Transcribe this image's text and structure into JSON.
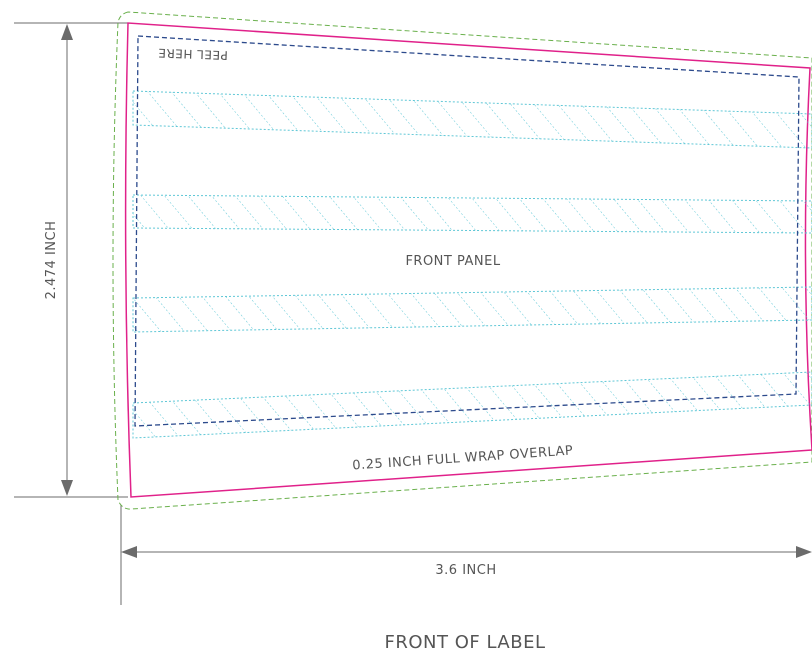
{
  "labels": {
    "height_dimension": "2.474 INCH",
    "width_dimension": "3.6 INCH",
    "peel_here": "PEEL HERE",
    "front_panel": "FRONT PANEL",
    "overlap": "0.25 INCH FULL WRAP OVERLAP",
    "caption": "FRONT OF LABEL"
  },
  "colors": {
    "dimension_lines": "#6b6b6b",
    "trim_line": "#e0218a",
    "bleed_line": "#6ab04c",
    "safe_line": "#2c4a8c",
    "hatch_bands": "#5fc7d6",
    "text": "#555555"
  }
}
